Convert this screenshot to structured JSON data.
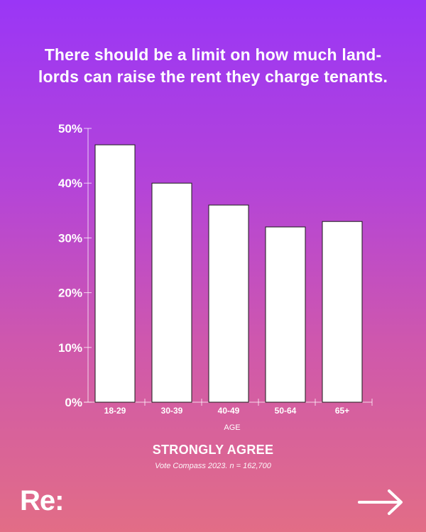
{
  "headline": {
    "line1": "There should be a limit on how much land-",
    "line2": "lords can raise the rent they charge tenants."
  },
  "chart_data": {
    "type": "bar",
    "categories": [
      "18-29",
      "30-39",
      "40-49",
      "50-64",
      "65+"
    ],
    "values": [
      47,
      40,
      36,
      32,
      33
    ],
    "ylim": [
      0,
      50
    ],
    "yticks": [
      "0%",
      "10%",
      "20%",
      "30%",
      "40%",
      "50%"
    ],
    "ytick_values": [
      0,
      10,
      20,
      30,
      40,
      50
    ],
    "xlabel": "AGE",
    "ylabel": "",
    "grid": false,
    "bar_color": "#ffffff",
    "bar_outline": "#1a1a1a"
  },
  "footer": {
    "title": "STRONGLY AGREE",
    "source": "Vote Compass 2023. n = 162,700"
  },
  "brand": {
    "logo": "Re:",
    "next_icon": "arrow-right-icon"
  },
  "colors": {
    "gradient_top": "#9a36f6",
    "gradient_bottom": "#e26d86",
    "text": "#ffffff"
  }
}
